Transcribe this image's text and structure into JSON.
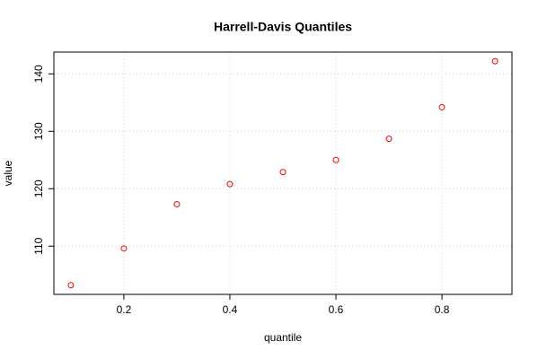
{
  "chart_data": {
    "type": "scatter",
    "title": "Harrell-Davis Quantiles",
    "x_label": "quantile",
    "y_label": "value",
    "x": [
      0.1,
      0.2,
      0.3,
      0.4,
      0.5,
      0.6,
      0.7,
      0.8,
      0.9
    ],
    "values": [
      103.2,
      109.6,
      117.3,
      120.8,
      122.9,
      125.0,
      128.7,
      134.2,
      142.2
    ],
    "color": "#ff0000",
    "xlim": [
      0.068,
      0.932
    ],
    "ylim": [
      101.6,
      143.8
    ],
    "xticks": [
      0.2,
      0.4,
      0.6,
      0.8
    ],
    "yticks": [
      110,
      120,
      130,
      140
    ],
    "grid": true
  }
}
